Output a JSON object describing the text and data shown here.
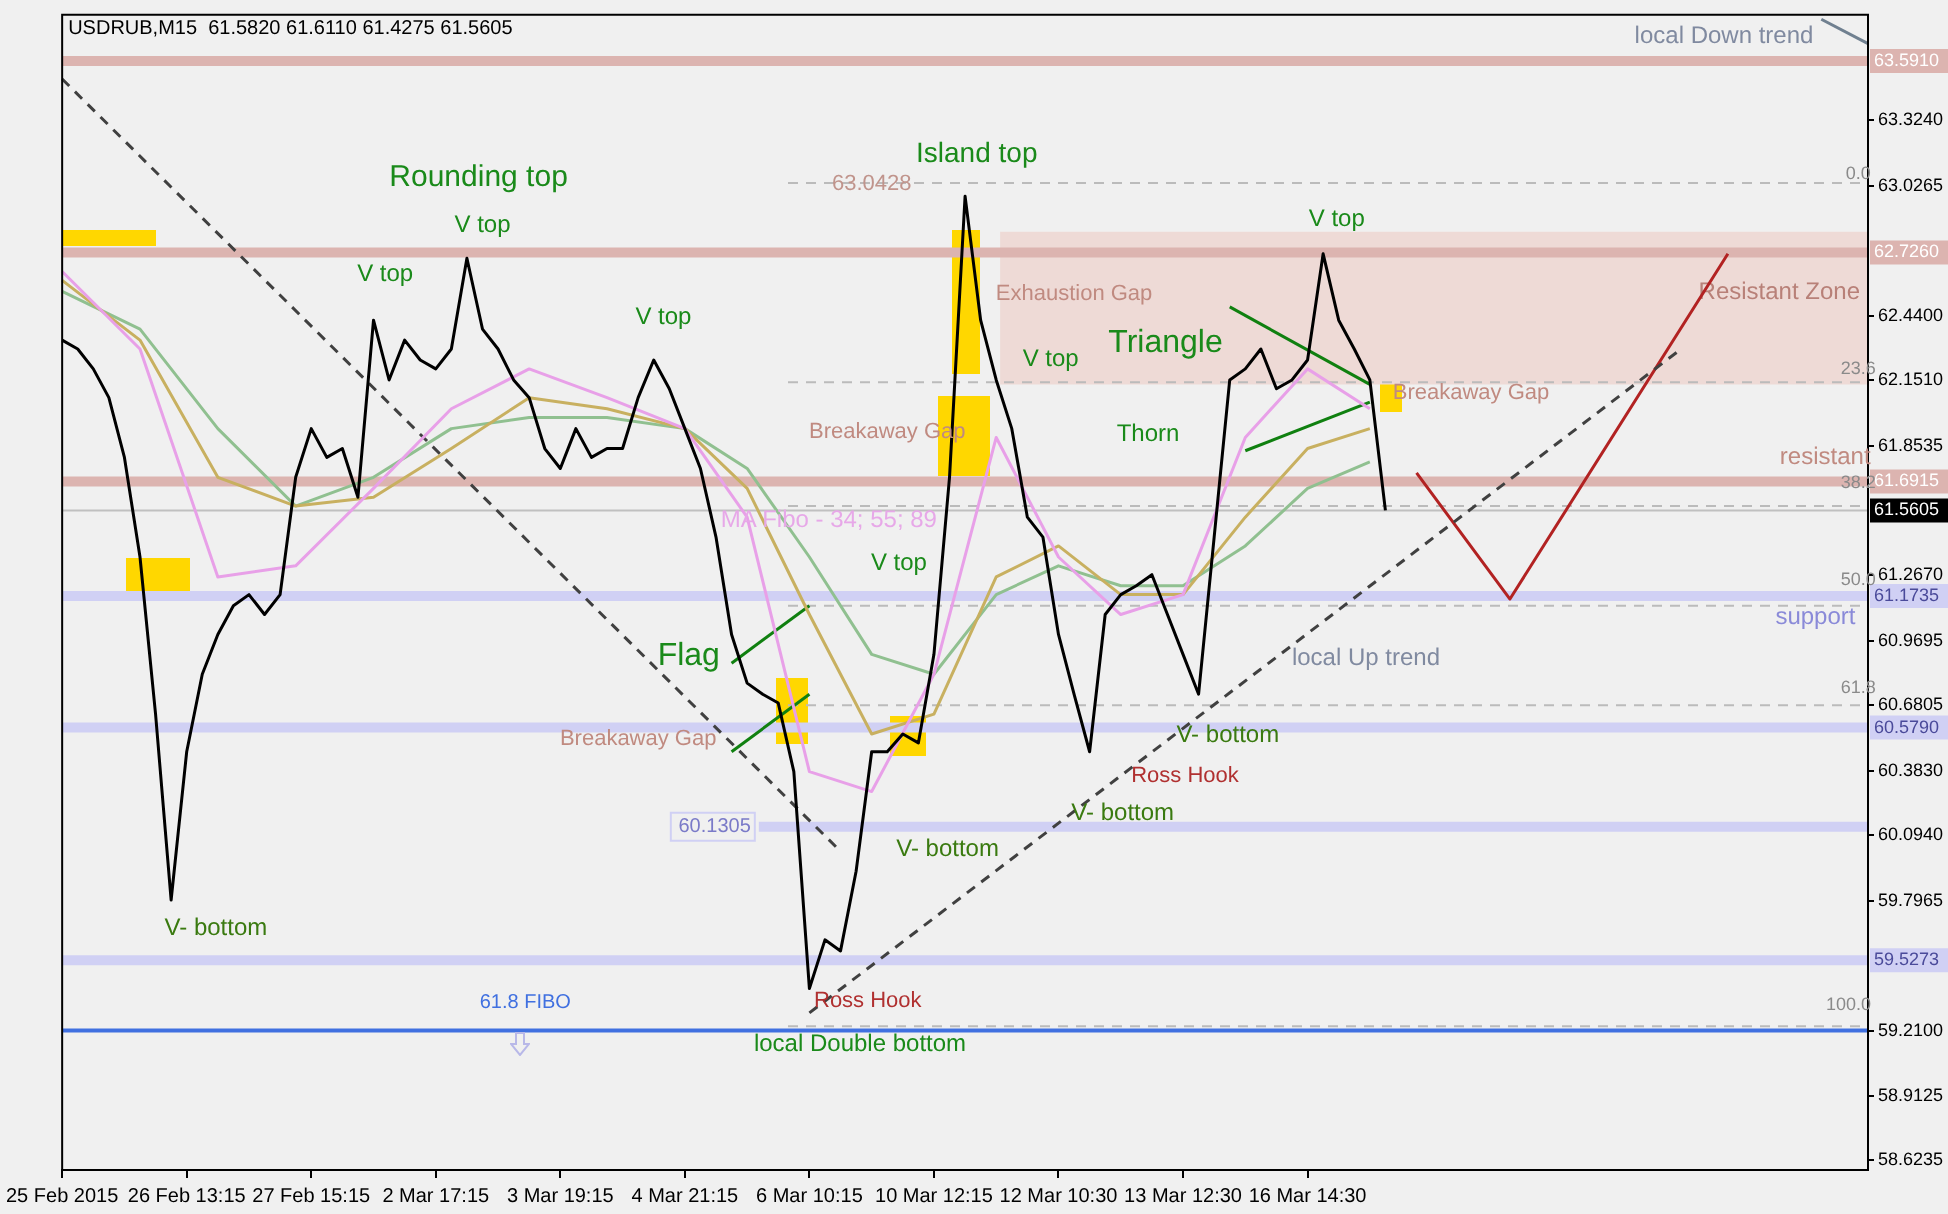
{
  "chart_data": {
    "type": "line",
    "title": "USDRUB,M15  61.5820 61.6110 61.4275 61.5605",
    "categories": [
      "25 Feb 2015",
      null,
      null,
      null,
      null,
      null,
      null,
      null,
      "26 Feb 13:15",
      null,
      null,
      null,
      null,
      null,
      null,
      null,
      "27 Feb 15:15",
      null,
      null,
      null,
      null,
      null,
      null,
      null,
      "2 Mar 17:15",
      null,
      null,
      null,
      null,
      null,
      null,
      null,
      "3 Mar 19:15",
      null,
      null,
      null,
      null,
      null,
      null,
      null,
      "4 Mar 21:15",
      null,
      null,
      null,
      null,
      null,
      null,
      null,
      "6 Mar 10:15",
      null,
      null,
      null,
      null,
      null,
      null,
      null,
      "10 Mar 12:15",
      null,
      null,
      null,
      null,
      null,
      null,
      null,
      "12 Mar 10:30",
      null,
      null,
      null,
      null,
      null,
      null,
      null,
      "13 Mar 12:30",
      null,
      null,
      null,
      null,
      null,
      null,
      null,
      "16 Mar 14:30",
      null,
      null,
      null,
      null,
      null,
      null,
      null,
      null,
      null,
      null,
      null,
      null,
      null,
      null,
      null,
      null,
      null,
      null,
      null,
      null,
      null,
      null,
      null,
      null,
      null,
      null,
      null,
      null,
      null,
      null,
      null,
      null,
      null,
      null,
      null,
      null
    ],
    "series": [
      {
        "color": "#000000",
        "values": [
          62.33,
          62.29,
          62.2,
          62.07,
          61.8,
          61.35,
          60.64,
          59.8,
          60.47,
          60.82,
          61.0,
          61.13,
          61.18,
          61.09,
          61.18,
          61.71,
          61.93,
          61.8,
          61.84,
          61.62,
          62.42,
          62.15,
          62.33,
          62.24,
          62.2,
          62.29,
          62.7,
          62.38,
          62.29,
          62.15,
          62.07,
          61.84,
          61.75,
          61.93,
          61.8,
          61.84,
          61.84,
          62.07,
          62.24,
          62.11,
          61.93,
          61.75,
          61.44,
          61.0,
          60.78,
          60.73,
          60.69,
          60.38,
          59.4,
          59.62,
          59.57,
          59.93,
          60.47,
          60.47,
          60.55,
          60.51,
          60.91,
          61.71,
          62.98,
          62.42,
          62.15,
          61.93,
          61.53,
          61.44,
          61.0,
          60.73,
          60.47,
          61.09,
          61.18,
          61.22,
          61.27,
          61.09,
          60.91,
          60.73,
          61.44,
          62.15,
          62.2,
          62.29,
          62.11,
          62.15,
          62.24,
          62.72,
          62.42,
          62.29,
          62.15,
          61.5605,
          null,
          null,
          null,
          null,
          null,
          null,
          null,
          null,
          null,
          null,
          null,
          null,
          null,
          null,
          null,
          null,
          null,
          null,
          null,
          null,
          null,
          null,
          null,
          null,
          null,
          null,
          null,
          null,
          null,
          null,
          null
        ]
      },
      {
        "color": "#e8a0e8",
        "values": [
          62.64,
          null,
          null,
          null,
          null,
          62.29,
          null,
          null,
          null,
          null,
          61.26,
          null,
          null,
          null,
          null,
          61.31,
          null,
          null,
          null,
          null,
          61.66,
          null,
          null,
          null,
          null,
          62.02,
          null,
          null,
          null,
          null,
          62.2,
          null,
          null,
          null,
          null,
          62.07,
          null,
          null,
          null,
          null,
          61.93,
          null,
          null,
          null,
          61.53,
          null,
          null,
          null,
          60.38,
          null,
          null,
          null,
          60.29,
          null,
          null,
          null,
          60.82,
          null,
          null,
          null,
          61.89,
          null,
          null,
          null,
          61.35,
          null,
          null,
          null,
          61.09,
          null,
          null,
          null,
          61.18,
          null,
          null,
          null,
          61.89,
          null,
          null,
          null,
          62.2,
          null,
          null,
          null,
          62.02,
          null,
          null,
          null,
          null,
          null,
          null,
          null,
          null,
          null,
          null,
          null,
          null,
          null,
          null,
          null,
          null,
          null,
          null,
          null,
          null,
          null,
          null,
          null,
          null,
          null,
          null,
          null,
          null,
          null,
          null,
          null,
          null
        ]
      },
      {
        "color": "#c8b060",
        "values": [
          62.6,
          null,
          null,
          null,
          null,
          62.33,
          null,
          null,
          null,
          null,
          61.71,
          null,
          null,
          null,
          null,
          61.58,
          null,
          null,
          null,
          null,
          61.62,
          null,
          null,
          null,
          null,
          61.84,
          null,
          null,
          null,
          null,
          62.07,
          null,
          null,
          null,
          null,
          62.02,
          null,
          null,
          null,
          null,
          61.93,
          null,
          null,
          null,
          61.66,
          null,
          null,
          null,
          61.09,
          null,
          null,
          null,
          60.55,
          null,
          null,
          null,
          60.64,
          null,
          null,
          null,
          61.26,
          null,
          null,
          null,
          61.4,
          null,
          null,
          null,
          61.18,
          null,
          null,
          null,
          61.18,
          null,
          null,
          null,
          61.53,
          null,
          null,
          null,
          61.84,
          null,
          null,
          null,
          61.93,
          null,
          null,
          null,
          null,
          null,
          null,
          null,
          null,
          null,
          null,
          null,
          null,
          null,
          null,
          null,
          null,
          null,
          null,
          null,
          null,
          null,
          null,
          null,
          null,
          null,
          null,
          null,
          null,
          null,
          null,
          null,
          null
        ]
      },
      {
        "color": "#90c090",
        "values": [
          62.55,
          null,
          null,
          null,
          null,
          62.38,
          null,
          null,
          null,
          null,
          61.93,
          null,
          null,
          null,
          null,
          61.58,
          null,
          null,
          null,
          null,
          61.71,
          null,
          null,
          null,
          null,
          61.93,
          null,
          null,
          null,
          null,
          61.98,
          null,
          null,
          null,
          null,
          61.98,
          null,
          null,
          null,
          null,
          61.93,
          null,
          null,
          null,
          61.75,
          null,
          null,
          null,
          61.35,
          null,
          null,
          null,
          60.91,
          null,
          null,
          null,
          60.82,
          null,
          null,
          null,
          61.18,
          null,
          null,
          null,
          61.31,
          null,
          null,
          null,
          61.22,
          null,
          null,
          null,
          61.22,
          null,
          null,
          null,
          61.4,
          null,
          null,
          null,
          61.66,
          null,
          null,
          null,
          61.78,
          null,
          null,
          null,
          null,
          null,
          null,
          null,
          null,
          null,
          null,
          null,
          null,
          null,
          null,
          null,
          null,
          null,
          null,
          null,
          null,
          null,
          null,
          null,
          null,
          null,
          null,
          null,
          null,
          null,
          null,
          null,
          null
        ]
      },
      {
        "color": "#108010",
        "values": [
          null,
          null,
          null,
          null,
          null,
          null,
          null,
          null,
          null,
          null,
          null,
          null,
          null,
          null,
          null,
          null,
          null,
          null,
          null,
          null,
          null,
          null,
          null,
          null,
          null,
          null,
          null,
          null,
          null,
          null,
          null,
          null,
          null,
          null,
          null,
          null,
          null,
          null,
          null,
          null,
          null,
          null,
          null,
          null,
          null,
          null,
          null,
          null,
          null,
          null,
          null,
          null,
          null,
          null,
          null,
          null,
          null,
          null,
          null,
          null,
          null,
          null,
          null,
          null,
          null,
          null,
          null,
          null,
          null,
          null,
          null,
          null,
          null,
          null,
          null,
          62.48,
          null,
          null,
          null,
          null,
          null,
          null,
          null,
          null,
          62.13,
          null,
          null,
          null,
          null,
          null,
          null,
          null,
          null,
          null,
          null,
          null,
          null,
          null,
          null,
          null,
          null,
          null,
          null,
          null,
          null,
          null,
          null,
          null,
          null,
          null,
          null,
          null,
          null,
          null,
          null,
          null,
          null
        ]
      },
      {
        "color": "#108010",
        "values": [
          null,
          null,
          null,
          null,
          null,
          null,
          null,
          null,
          null,
          null,
          null,
          null,
          null,
          null,
          null,
          null,
          null,
          null,
          null,
          null,
          null,
          null,
          null,
          null,
          null,
          null,
          null,
          null,
          null,
          null,
          null,
          null,
          null,
          null,
          null,
          null,
          null,
          null,
          null,
          null,
          null,
          null,
          null,
          null,
          null,
          null,
          null,
          null,
          null,
          null,
          null,
          null,
          null,
          null,
          null,
          null,
          null,
          null,
          null,
          null,
          null,
          null,
          null,
          null,
          null,
          null,
          null,
          null,
          null,
          null,
          null,
          null,
          null,
          null,
          null,
          null,
          61.83,
          null,
          null,
          null,
          null,
          null,
          null,
          null,
          62.05,
          null,
          null,
          null,
          null,
          null,
          null,
          null,
          null,
          null,
          null,
          null,
          null,
          null,
          null,
          null,
          null,
          null,
          null,
          null,
          null,
          null,
          null,
          null,
          null,
          null,
          null,
          null,
          null,
          null,
          null,
          null,
          null
        ]
      },
      {
        "color": "#108010",
        "values": [
          null,
          null,
          null,
          null,
          null,
          null,
          null,
          null,
          null,
          null,
          null,
          null,
          null,
          null,
          null,
          null,
          null,
          null,
          null,
          null,
          null,
          null,
          null,
          null,
          null,
          null,
          null,
          null,
          null,
          null,
          null,
          null,
          null,
          null,
          null,
          null,
          null,
          null,
          null,
          null,
          null,
          null,
          null,
          60.87,
          null,
          null,
          null,
          null,
          61.13,
          null,
          null,
          null,
          null,
          null,
          null,
          null,
          null,
          null,
          null,
          null,
          null,
          null,
          null,
          null,
          null,
          null,
          null,
          null,
          null,
          null,
          null,
          null,
          null,
          null,
          null,
          null,
          null,
          null,
          null,
          null,
          null,
          null,
          null,
          null,
          null,
          null,
          null,
          null,
          null,
          null,
          null,
          null,
          null,
          null,
          null,
          null,
          null,
          null,
          null,
          null,
          null,
          null,
          null,
          null,
          null,
          null,
          null,
          null,
          null,
          null,
          null,
          null,
          null,
          null,
          null,
          null,
          null
        ]
      },
      {
        "color": "#108010",
        "values": [
          null,
          null,
          null,
          null,
          null,
          null,
          null,
          null,
          null,
          null,
          null,
          null,
          null,
          null,
          null,
          null,
          null,
          null,
          null,
          null,
          null,
          null,
          null,
          null,
          null,
          null,
          null,
          null,
          null,
          null,
          null,
          null,
          null,
          null,
          null,
          null,
          null,
          null,
          null,
          null,
          null,
          null,
          null,
          60.47,
          null,
          null,
          null,
          null,
          60.73,
          null,
          null,
          null,
          null,
          null,
          null,
          null,
          null,
          null,
          null,
          null,
          null,
          null,
          null,
          null,
          null,
          null,
          null,
          null,
          null,
          null,
          null,
          null,
          null,
          null,
          null,
          null,
          null,
          null,
          null,
          null,
          null,
          null,
          null,
          null,
          null,
          null,
          null,
          null,
          null,
          null,
          null,
          null,
          null,
          null,
          null,
          null,
          null,
          null,
          null,
          null,
          null,
          null,
          null,
          null,
          null,
          null,
          null,
          null,
          null,
          null,
          null,
          null,
          null,
          null,
          null,
          null,
          null
        ]
      },
      {
        "color": "#404040",
        "line_style": "dashed",
        "values": [
          63.51,
          null,
          null,
          null,
          null,
          null,
          null,
          null,
          null,
          null,
          null,
          null,
          null,
          null,
          null,
          null,
          null,
          null,
          null,
          null,
          null,
          null,
          null,
          null,
          null,
          null,
          null,
          null,
          null,
          null,
          null,
          null,
          null,
          null,
          null,
          null,
          null,
          null,
          null,
          null,
          null,
          null,
          null,
          null,
          null,
          null,
          null,
          null,
          null,
          null,
          60.02,
          null,
          null,
          null,
          null,
          null,
          null,
          null,
          null,
          null,
          null,
          null,
          null,
          null,
          null,
          null,
          null,
          null,
          null,
          null,
          null,
          null,
          null,
          null,
          null,
          null,
          null,
          null,
          null,
          null,
          null,
          null,
          null,
          null,
          null,
          null,
          null,
          null,
          null,
          null,
          null,
          null,
          null,
          null,
          null,
          null,
          null,
          null,
          null,
          null,
          null,
          null,
          null,
          null,
          null,
          null,
          null,
          null,
          null,
          null,
          null,
          null,
          null,
          null,
          null,
          null,
          null
        ]
      },
      {
        "color": "#404040",
        "line_style": "dashed",
        "values": [
          null,
          null,
          null,
          null,
          null,
          null,
          null,
          null,
          null,
          null,
          null,
          null,
          null,
          null,
          null,
          null,
          null,
          null,
          null,
          null,
          null,
          null,
          null,
          null,
          null,
          null,
          null,
          null,
          null,
          null,
          null,
          null,
          null,
          null,
          null,
          null,
          null,
          null,
          null,
          null,
          null,
          null,
          null,
          null,
          null,
          null,
          null,
          null,
          59.29,
          null,
          null,
          null,
          null,
          null,
          null,
          null,
          null,
          null,
          null,
          null,
          null,
          null,
          null,
          null,
          null,
          null,
          null,
          null,
          null,
          null,
          null,
          null,
          null,
          null,
          null,
          null,
          null,
          null,
          null,
          null,
          null,
          null,
          null,
          null,
          null,
          null,
          null,
          null,
          null,
          null,
          null,
          null,
          null,
          null,
          null,
          null,
          null,
          null,
          null,
          null,
          null,
          null,
          null,
          null,
          62.29,
          null,
          null,
          null,
          null,
          null,
          null,
          null,
          null,
          null,
          null,
          null,
          null
        ]
      },
      {
        "color": "#708090",
        "values": [
          null,
          null,
          null,
          null,
          null,
          null,
          null,
          null,
          null,
          null,
          null,
          null,
          null,
          null,
          null,
          null,
          null,
          null,
          null,
          null,
          null,
          null,
          null,
          null,
          null,
          null,
          null,
          null,
          null,
          null,
          null,
          null,
          null,
          null,
          null,
          null,
          null,
          null,
          null,
          null,
          null,
          null,
          null,
          null,
          null,
          null,
          null,
          null,
          null,
          null,
          null,
          null,
          null,
          null,
          null,
          null,
          null,
          null,
          null,
          null,
          null,
          null,
          null,
          null,
          null,
          null,
          null,
          null,
          null,
          null,
          null,
          null,
          null,
          null,
          null,
          null,
          null,
          null,
          null,
          null,
          null,
          null,
          null,
          null,
          null,
          null,
          null,
          null,
          null,
          null,
          null,
          null,
          null,
          null,
          null,
          null,
          null,
          null,
          null,
          null,
          null,
          null,
          null,
          null,
          null,
          null,
          null,
          null,
          null,
          null,
          null,
          null,
          null,
          63.78,
          null,
          null,
          63.67
        ]
      },
      {
        "color": "#b22222",
        "values": [
          null,
          null,
          null,
          null,
          null,
          null,
          null,
          null,
          null,
          null,
          null,
          null,
          null,
          null,
          null,
          null,
          null,
          null,
          null,
          null,
          null,
          null,
          null,
          null,
          null,
          null,
          null,
          null,
          null,
          null,
          null,
          null,
          null,
          null,
          null,
          null,
          null,
          null,
          null,
          null,
          null,
          null,
          null,
          null,
          null,
          null,
          null,
          null,
          null,
          null,
          null,
          null,
          null,
          null,
          null,
          null,
          null,
          null,
          null,
          null,
          null,
          null,
          null,
          null,
          null,
          null,
          null,
          null,
          null,
          null,
          null,
          null,
          null,
          null,
          null,
          null,
          null,
          null,
          null,
          null,
          null,
          null,
          null,
          null,
          null,
          null,
          null,
          61.73,
          null,
          null,
          null,
          null,
          null,
          61.16,
          null,
          null,
          null,
          null,
          null,
          null,
          null,
          null,
          null,
          null,
          null,
          null,
          null,
          62.72,
          null,
          null,
          null,
          null,
          null,
          null,
          null,
          null,
          null
        ]
      }
    ],
    "ylim": [
      58.58,
      63.8
    ],
    "yticks": [
      {
        "value": 63.324,
        "label": "63.3240"
      },
      {
        "value": 63.0265,
        "label": "63.0265"
      },
      {
        "value": 62.44,
        "label": "62.4400"
      },
      {
        "value": 62.151,
        "label": "62.1510"
      },
      {
        "value": 61.8535,
        "label": "61.8535"
      },
      {
        "value": 61.267,
        "label": "61.2670"
      },
      {
        "value": 60.9695,
        "label": "60.9695"
      },
      {
        "value": 60.6805,
        "label": "60.6805"
      },
      {
        "value": 60.383,
        "label": "60.3830"
      },
      {
        "value": 60.094,
        "label": "60.0940"
      },
      {
        "value": 59.7965,
        "label": "59.7965"
      },
      {
        "value": 59.21,
        "label": "59.2100"
      },
      {
        "value": 58.9125,
        "label": "58.9125"
      },
      {
        "value": 58.6235,
        "label": "58.6235"
      }
    ],
    "marker": "none",
    "ref_lines": [
      {
        "axis": "y",
        "value": 63.591,
        "label": "63.5910",
        "color": "#dcb4b0"
      },
      {
        "axis": "y",
        "value": 62.726,
        "label": "62.7260",
        "color": "#dcb4b0"
      },
      {
        "axis": "y",
        "value": 61.6915,
        "label": "61.6915",
        "color": "#dcb4b0"
      },
      {
        "axis": "y",
        "value": 61.5605,
        "label": "61.5605",
        "color": "#c0c0c0"
      },
      {
        "axis": "y",
        "value": 61.1735,
        "label": "61.1735",
        "color": "#d0d0f4"
      },
      {
        "axis": "y",
        "value": 60.579,
        "label": "60.5790",
        "color": "#d0d0f4"
      },
      {
        "axis": "y",
        "value": 60.1305,
        "label": "60.1305",
        "color": "#d0d0f4"
      },
      {
        "axis": "y",
        "value": 59.5273,
        "label": "59.5273",
        "color": "#d0d0f4"
      },
      {
        "axis": "y",
        "value": 59.21,
        "label": "61.8 FIBO",
        "color": "#4070e0"
      },
      {
        "axis": "y",
        "value": 63.04,
        "color": "#bbbbbb",
        "line_style": "dashed"
      },
      {
        "axis": "y",
        "value": 62.14,
        "color": "#bbbbbb",
        "line_style": "dashed"
      },
      {
        "axis": "y",
        "value": 61.58,
        "color": "#bbbbbb",
        "line_style": "dashed"
      },
      {
        "axis": "y",
        "value": 61.13,
        "color": "#bbbbbb",
        "line_style": "dashed"
      },
      {
        "axis": "y",
        "value": 60.68,
        "color": "#bbbbbb",
        "line_style": "dashed"
      },
      {
        "axis": "y",
        "value": 59.23,
        "color": "#bbbbbb",
        "line_style": "dashed"
      }
    ],
    "bands": [
      {
        "axis": "y",
        "from": 62.13,
        "to": 62.82,
        "label": "Resistant Zone",
        "color": "#eedad6"
      }
    ],
    "annotations": [
      "Rounding top",
      "V top",
      "V top",
      "V top",
      "Island top",
      "V top",
      "V top",
      "V top",
      "Triangle",
      "Thorn",
      "Flag",
      "Exhaustion Gap",
      "Breakaway Gap",
      "Breakaway Gap",
      "Breakaway Gap",
      "MA Fibo - 34; 55; 89",
      "V- bottom",
      "V- bottom",
      "V- bottom",
      "V- bottom",
      "Ross Hook",
      "Ross Hook",
      "local Double bottom",
      "local Up trend",
      "local Down trend",
      "resistant",
      "support",
      "63.0428",
      "0.0",
      "23.6",
      "38.2",
      "50.0",
      "61.8",
      "100.0"
    ]
  }
}
